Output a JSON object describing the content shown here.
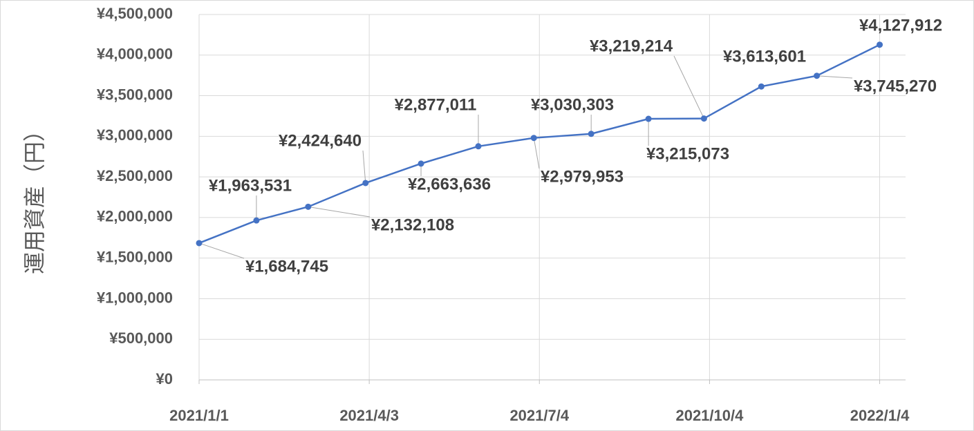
{
  "chart_data": {
    "type": "line",
    "y_label": "運用資産（円）",
    "x": [
      "2021/1/1",
      "2021/2/1",
      "2021/3/1",
      "2021/4/1",
      "2021/5/1",
      "2021/6/1",
      "2021/7/1",
      "2021/8/1",
      "2021/9/1",
      "2021/10/1",
      "2021/11/1",
      "2021/12/1",
      "2022/1/4"
    ],
    "series": [
      {
        "name": "運用資産",
        "color": "#4472c4",
        "values": [
          1684745,
          1963531,
          2132108,
          2424640,
          2663636,
          2877011,
          2979953,
          3030303,
          3215073,
          3219214,
          3613601,
          3745270,
          4127912
        ],
        "value_labels": [
          "¥1,684,745",
          "¥1,963,531",
          "¥2,132,108",
          "¥2,424,640",
          "¥2,663,636",
          "¥2,877,011",
          "¥2,979,953",
          "¥3,030,303",
          "¥3,215,073",
          "¥3,219,214",
          "¥3,613,601",
          "¥3,745,270",
          "¥4,127,912"
        ]
      }
    ],
    "xlim": [
      "2021/1/1",
      "2022/1/18"
    ],
    "xticks": [
      "2021/1/1",
      "2021/4/3",
      "2021/7/4",
      "2021/10/4",
      "2022/1/4"
    ],
    "ylim": [
      0,
      4500000
    ],
    "yticks": [
      {
        "value": 0,
        "label": "¥0"
      },
      {
        "value": 500000,
        "label": "¥500,000"
      },
      {
        "value": 1000000,
        "label": "¥1,000,000"
      },
      {
        "value": 1500000,
        "label": "¥1,500,000"
      },
      {
        "value": 2000000,
        "label": "¥2,000,000"
      },
      {
        "value": 2500000,
        "label": "¥2,500,000"
      },
      {
        "value": 3000000,
        "label": "¥3,000,000"
      },
      {
        "value": 3500000,
        "label": "¥3,500,000"
      },
      {
        "value": 4000000,
        "label": "¥4,000,000"
      },
      {
        "value": 4500000,
        "label": "¥4,500,000"
      }
    ],
    "grid": true
  }
}
